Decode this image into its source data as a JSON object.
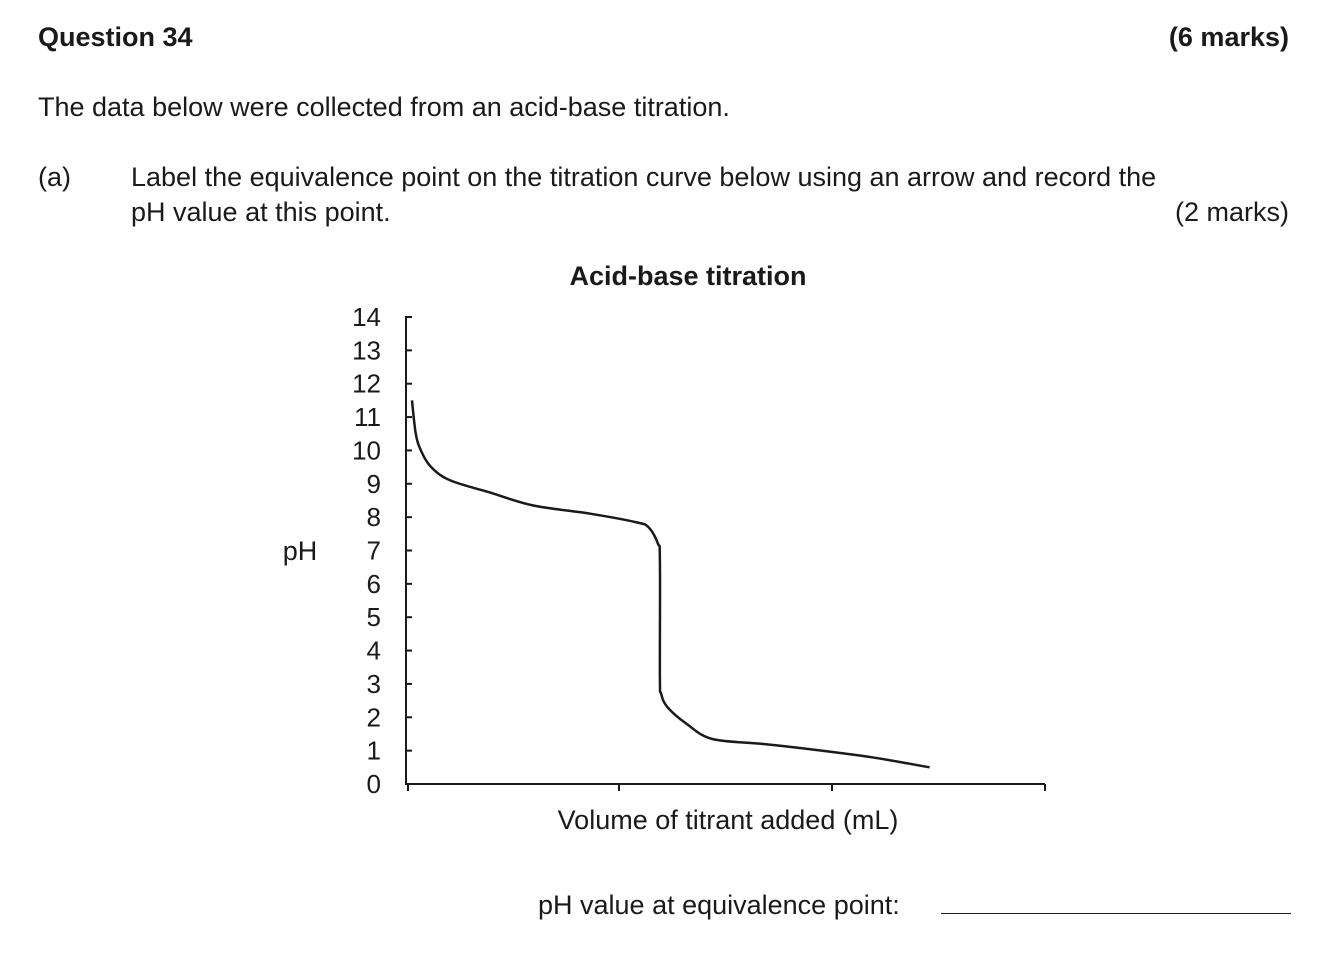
{
  "question": {
    "title": "Question 34",
    "marks": "(6 marks)",
    "intro": "The data below were collected from an acid-base titration."
  },
  "part_a": {
    "label": "(a)",
    "text_line1": "Label the equivalence point on the titration curve below using an arrow and record the",
    "text_line2": "pH value at this point.",
    "marks": "(2 marks)"
  },
  "answer": {
    "label": "pH value at equivalence point:",
    "value": ""
  },
  "chart_data": {
    "type": "line",
    "title": "Acid-base titration",
    "xlabel": "Volume of titrant added (mL)",
    "ylabel": "pH",
    "ylim": [
      0,
      14
    ],
    "yticks": [
      "0",
      "1",
      "2",
      "3",
      "4",
      "5",
      "6",
      "7",
      "8",
      "9",
      "10",
      "11",
      "12",
      "13",
      "14"
    ],
    "x_tick_labels": [],
    "grid": false,
    "legend": "none",
    "series": [
      {
        "x": [
          0.0,
          0.006,
          0.014,
          0.03,
          0.06,
          0.12,
          0.19,
          0.28,
          0.35,
          0.37,
          0.385,
          0.388,
          0.388,
          0.39,
          0.4,
          0.43,
          0.47,
          0.55,
          0.62,
          0.72,
          0.81
        ],
        "y": [
          11.5,
          10.5,
          10.0,
          9.5,
          9.1,
          8.75,
          8.35,
          8.1,
          7.85,
          7.7,
          7.2,
          6.7,
          3.2,
          2.7,
          2.3,
          1.8,
          1.35,
          1.2,
          1.05,
          0.8,
          0.5
        ]
      }
    ]
  }
}
